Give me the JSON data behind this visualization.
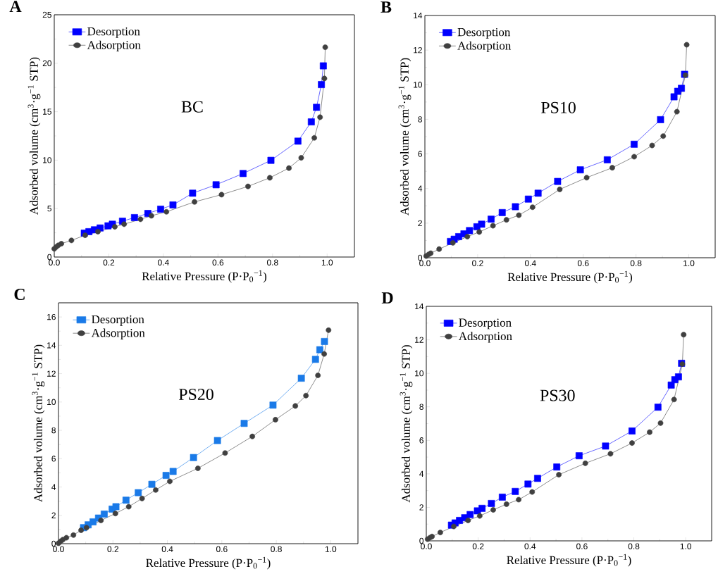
{
  "chart_data": [
    {
      "type": "line",
      "title": "A",
      "xlabel": "Relative Pressure (P·P$_{0}$$^{−1}$)",
      "ylabel": "Adsorbed volume (cm$^{3}$·g$^{−1}$ STP)",
      "annotations": [
        "BC"
      ],
      "legend": "top left",
      "xlim": [
        0,
        1.1
      ],
      "ylim": [
        0,
        25
      ],
      "xticks": [
        {
          "value": 0,
          "label": "0.0"
        },
        {
          "value": 0.2,
          "label": "0.2"
        },
        {
          "value": 0.4,
          "label": "0.4"
        },
        {
          "value": 0.6,
          "label": "0.6"
        },
        {
          "value": 0.8,
          "label": "0.8"
        },
        {
          "value": 1,
          "label": "1.0"
        }
      ],
      "yticks": [
        0,
        5,
        10,
        15,
        20,
        25
      ],
      "series": [
        {
          "name": "Desorption",
          "color": "#0000ff",
          "marker": "square",
          "x": [
            0.11,
            0.127,
            0.147,
            0.168,
            0.197,
            0.213,
            0.25,
            0.294,
            0.343,
            0.39,
            0.435,
            0.507,
            0.593,
            0.692,
            0.794,
            0.893,
            0.942,
            0.961,
            0.979,
            0.986
          ],
          "values": [
            2.47,
            2.62,
            2.81,
            3.0,
            3.22,
            3.39,
            3.7,
            4.07,
            4.5,
            4.94,
            5.38,
            6.59,
            7.46,
            8.62,
            9.98,
            11.96,
            13.95,
            15.45,
            17.8,
            19.73
          ]
        },
        {
          "name": "Adsorption",
          "color": "#404040",
          "marker": "circle",
          "x": [
            0.0,
            0.007,
            0.015,
            0.026,
            0.063,
            0.113,
            0.16,
            0.222,
            0.256,
            0.316,
            0.356,
            0.411,
            0.514,
            0.613,
            0.71,
            0.79,
            0.86,
            0.905,
            0.953,
            0.974,
            0.99,
            0.993
          ],
          "values": [
            0.85,
            1.04,
            1.21,
            1.38,
            1.72,
            2.25,
            2.62,
            3.12,
            3.39,
            3.9,
            4.26,
            4.67,
            5.69,
            6.44,
            7.29,
            8.18,
            9.18,
            10.24,
            12.3,
            14.43,
            18.43,
            21.65
          ]
        }
      ]
    },
    {
      "type": "line",
      "title": "B",
      "xlabel": "Relative Pressure (P·P$_{0}$$^{−1}$)",
      "ylabel": "Adsorbed volume (cm$^{3}$·g$^{−1}$ STP)",
      "annotations": [
        "PS10"
      ],
      "legend": "top left",
      "xlim": [
        0,
        1.1
      ],
      "ylim": [
        0,
        14
      ],
      "xticks": [
        {
          "value": 0,
          "label": "0.0"
        },
        {
          "value": 0.2,
          "label": "0.2"
        },
        {
          "value": 0.4,
          "label": "0.4"
        },
        {
          "value": 0.6,
          "label": "0.6"
        },
        {
          "value": 0.8,
          "label": "0.8"
        },
        {
          "value": 1,
          "label": "1.0"
        }
      ],
      "yticks": [
        0,
        2,
        4,
        6,
        8,
        10,
        12,
        14
      ],
      "series": [
        {
          "name": "Desorption",
          "color": "#0000ff",
          "marker": "square",
          "x": [
            0.097,
            0.111,
            0.128,
            0.148,
            0.169,
            0.197,
            0.215,
            0.251,
            0.293,
            0.343,
            0.392,
            0.429,
            0.503,
            0.589,
            0.691,
            0.793,
            0.893,
            0.944,
            0.958,
            0.972,
            0.984
          ],
          "values": [
            0.94,
            1.07,
            1.22,
            1.38,
            1.57,
            1.79,
            1.94,
            2.23,
            2.61,
            2.95,
            3.39,
            3.73,
            4.41,
            5.08,
            5.66,
            6.56,
            7.98,
            9.3,
            9.62,
            9.79,
            10.6
          ]
        },
        {
          "name": "Adsorption",
          "color": "#404040",
          "marker": "circle",
          "x": [
            0.005,
            0.014,
            0.022,
            0.054,
            0.106,
            0.161,
            0.206,
            0.258,
            0.309,
            0.356,
            0.408,
            0.511,
            0.613,
            0.71,
            0.793,
            0.861,
            0.903,
            0.955,
            0.987,
            0.992
          ],
          "values": [
            0.1,
            0.19,
            0.26,
            0.5,
            0.86,
            1.22,
            1.49,
            1.85,
            2.19,
            2.46,
            2.92,
            3.95,
            4.63,
            5.2,
            5.84,
            6.49,
            7.03,
            8.44,
            10.55,
            12.31
          ]
        }
      ]
    },
    {
      "type": "line",
      "title": "C",
      "xlabel": "Relative Pressure (P·P$_{0}$$^{−1}$)",
      "ylabel": "Adsorbed volume (cm$^{3}$·g$^{−1}$ STP)",
      "annotations": [
        "PS20"
      ],
      "legend": "top left",
      "xlim": [
        0,
        1.1
      ],
      "ylim": [
        0,
        17
      ],
      "xticks": [
        {
          "value": 0,
          "label": "0.0"
        },
        {
          "value": 0.2,
          "label": "0.2"
        },
        {
          "value": 0.4,
          "label": "0.4"
        },
        {
          "value": 0.6,
          "label": "0.6"
        },
        {
          "value": 0.8,
          "label": "0.8"
        },
        {
          "value": 1,
          "label": "1.0"
        }
      ],
      "yticks": [
        0,
        2,
        4,
        6,
        8,
        10,
        12,
        14,
        16
      ],
      "series": [
        {
          "name": "Desorption",
          "color": "#1a7ae8",
          "marker": "square",
          "x": [
            0.092,
            0.109,
            0.127,
            0.147,
            0.168,
            0.197,
            0.211,
            0.248,
            0.293,
            0.343,
            0.395,
            0.421,
            0.496,
            0.584,
            0.682,
            0.788,
            0.892,
            0.944,
            0.96,
            0.977
          ],
          "values": [
            1.13,
            1.33,
            1.54,
            1.81,
            2.09,
            2.44,
            2.61,
            3.07,
            3.6,
            4.19,
            4.82,
            5.1,
            6.08,
            7.28,
            8.49,
            9.78,
            11.68,
            13.01,
            13.69,
            14.27
          ]
        },
        {
          "name": "Adsorption",
          "color": "#404040",
          "marker": "circle",
          "x": [
            0.0,
            0.008,
            0.016,
            0.029,
            0.055,
            0.083,
            0.103,
            0.156,
            0.209,
            0.258,
            0.307,
            0.357,
            0.409,
            0.512,
            0.612,
            0.712,
            0.797,
            0.87,
            0.909,
            0.953,
            0.976,
            0.992
          ],
          "values": [
            0.03,
            0.17,
            0.28,
            0.42,
            0.61,
            0.95,
            1.13,
            1.64,
            2.13,
            2.61,
            3.19,
            3.79,
            4.4,
            5.32,
            6.4,
            7.57,
            8.75,
            9.72,
            10.45,
            11.88,
            13.39,
            15.07
          ]
        }
      ]
    },
    {
      "type": "line",
      "title": "D",
      "xlabel": "Relative Pressure (P·P$_{0}$$^{−1}$)",
      "ylabel": "Adsorbed volume (cm$^{3}$·g$^{−1}$ STP)",
      "annotations": [
        "PS30"
      ],
      "legend": "top left",
      "xlim": [
        0,
        1.1
      ],
      "ylim": [
        0,
        14
      ],
      "xticks": [
        {
          "value": 0,
          "label": "0.0"
        },
        {
          "value": 0.2,
          "label": "0.2"
        },
        {
          "value": 0.4,
          "label": "0.4"
        },
        {
          "value": 0.6,
          "label": "0.6"
        },
        {
          "value": 0.8,
          "label": "0.8"
        },
        {
          "value": 1,
          "label": "1.0"
        }
      ],
      "yticks": [
        0,
        2,
        4,
        6,
        8,
        10,
        12,
        14
      ],
      "series": [
        {
          "name": "Desorption",
          "color": "#0000ff",
          "marker": "square",
          "x": [
            0.097,
            0.111,
            0.128,
            0.148,
            0.169,
            0.197,
            0.215,
            0.251,
            0.293,
            0.343,
            0.392,
            0.429,
            0.503,
            0.589,
            0.691,
            0.793,
            0.893,
            0.944,
            0.958,
            0.972,
            0.984
          ],
          "values": [
            0.94,
            1.07,
            1.22,
            1.38,
            1.57,
            1.79,
            1.94,
            2.23,
            2.61,
            2.95,
            3.39,
            3.73,
            4.41,
            5.08,
            5.66,
            6.56,
            7.98,
            9.3,
            9.62,
            9.79,
            10.6
          ]
        },
        {
          "name": "Adsorption",
          "color": "#404040",
          "marker": "circle",
          "x": [
            0.005,
            0.014,
            0.022,
            0.054,
            0.106,
            0.161,
            0.206,
            0.258,
            0.309,
            0.356,
            0.408,
            0.511,
            0.613,
            0.71,
            0.793,
            0.861,
            0.903,
            0.955,
            0.987,
            0.992
          ],
          "values": [
            0.1,
            0.19,
            0.26,
            0.5,
            0.86,
            1.22,
            1.49,
            1.85,
            2.19,
            2.46,
            2.92,
            3.95,
            4.63,
            5.2,
            5.84,
            6.49,
            7.03,
            8.44,
            10.55,
            12.31
          ]
        }
      ]
    }
  ]
}
